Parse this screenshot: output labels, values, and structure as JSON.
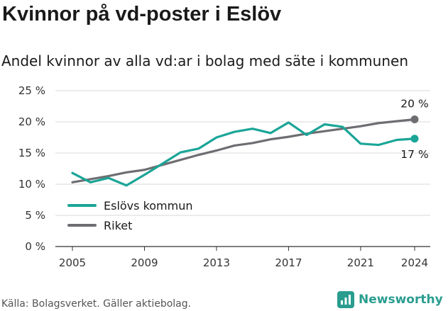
{
  "title": "Kvinnor på vd-poster i Eslöv",
  "subtitle": "Andel kvinnor av alla vd:ar i bolag med säte i kommunen",
  "source": "Källa: Bolagsverket. Gäller aktiebolag.",
  "brand": "Newsworthy",
  "colors": {
    "kommun": "#1aa597",
    "riket": "#6e6d72",
    "grid": "#d9d9d9",
    "axis": "#333333"
  },
  "chart_data": {
    "type": "line",
    "x": [
      2005,
      2006,
      2007,
      2008,
      2009,
      2010,
      2011,
      2012,
      2013,
      2014,
      2015,
      2016,
      2017,
      2018,
      2019,
      2020,
      2021,
      2022,
      2023,
      2024
    ],
    "series": [
      {
        "name": "Eslövs kommun",
        "values": [
          11.8,
          10.3,
          11.0,
          9.8,
          11.5,
          13.3,
          15.1,
          15.7,
          17.5,
          18.4,
          18.9,
          18.2,
          19.9,
          17.9,
          19.6,
          19.2,
          16.5,
          16.3,
          17.1,
          17.3
        ]
      },
      {
        "name": "Riket",
        "values": [
          10.3,
          10.8,
          11.3,
          11.9,
          12.3,
          13.1,
          13.9,
          14.7,
          15.4,
          16.2,
          16.6,
          17.2,
          17.6,
          18.1,
          18.5,
          18.9,
          19.3,
          19.8,
          20.1,
          20.4
        ]
      }
    ],
    "yticks": [
      "0 %",
      "5 %",
      "10 %",
      "15 %",
      "20 %",
      "25 %"
    ],
    "ytick_values": [
      0,
      5,
      10,
      15,
      20,
      25
    ],
    "xticks": [
      2005,
      2009,
      2013,
      2017,
      2021,
      2024
    ],
    "ylim": [
      0,
      25
    ],
    "xlim": [
      2005,
      2024
    ],
    "end_labels": {
      "riket": "20 %",
      "kommun": "17 %"
    },
    "grid": true,
    "legend": "bottom-left"
  }
}
